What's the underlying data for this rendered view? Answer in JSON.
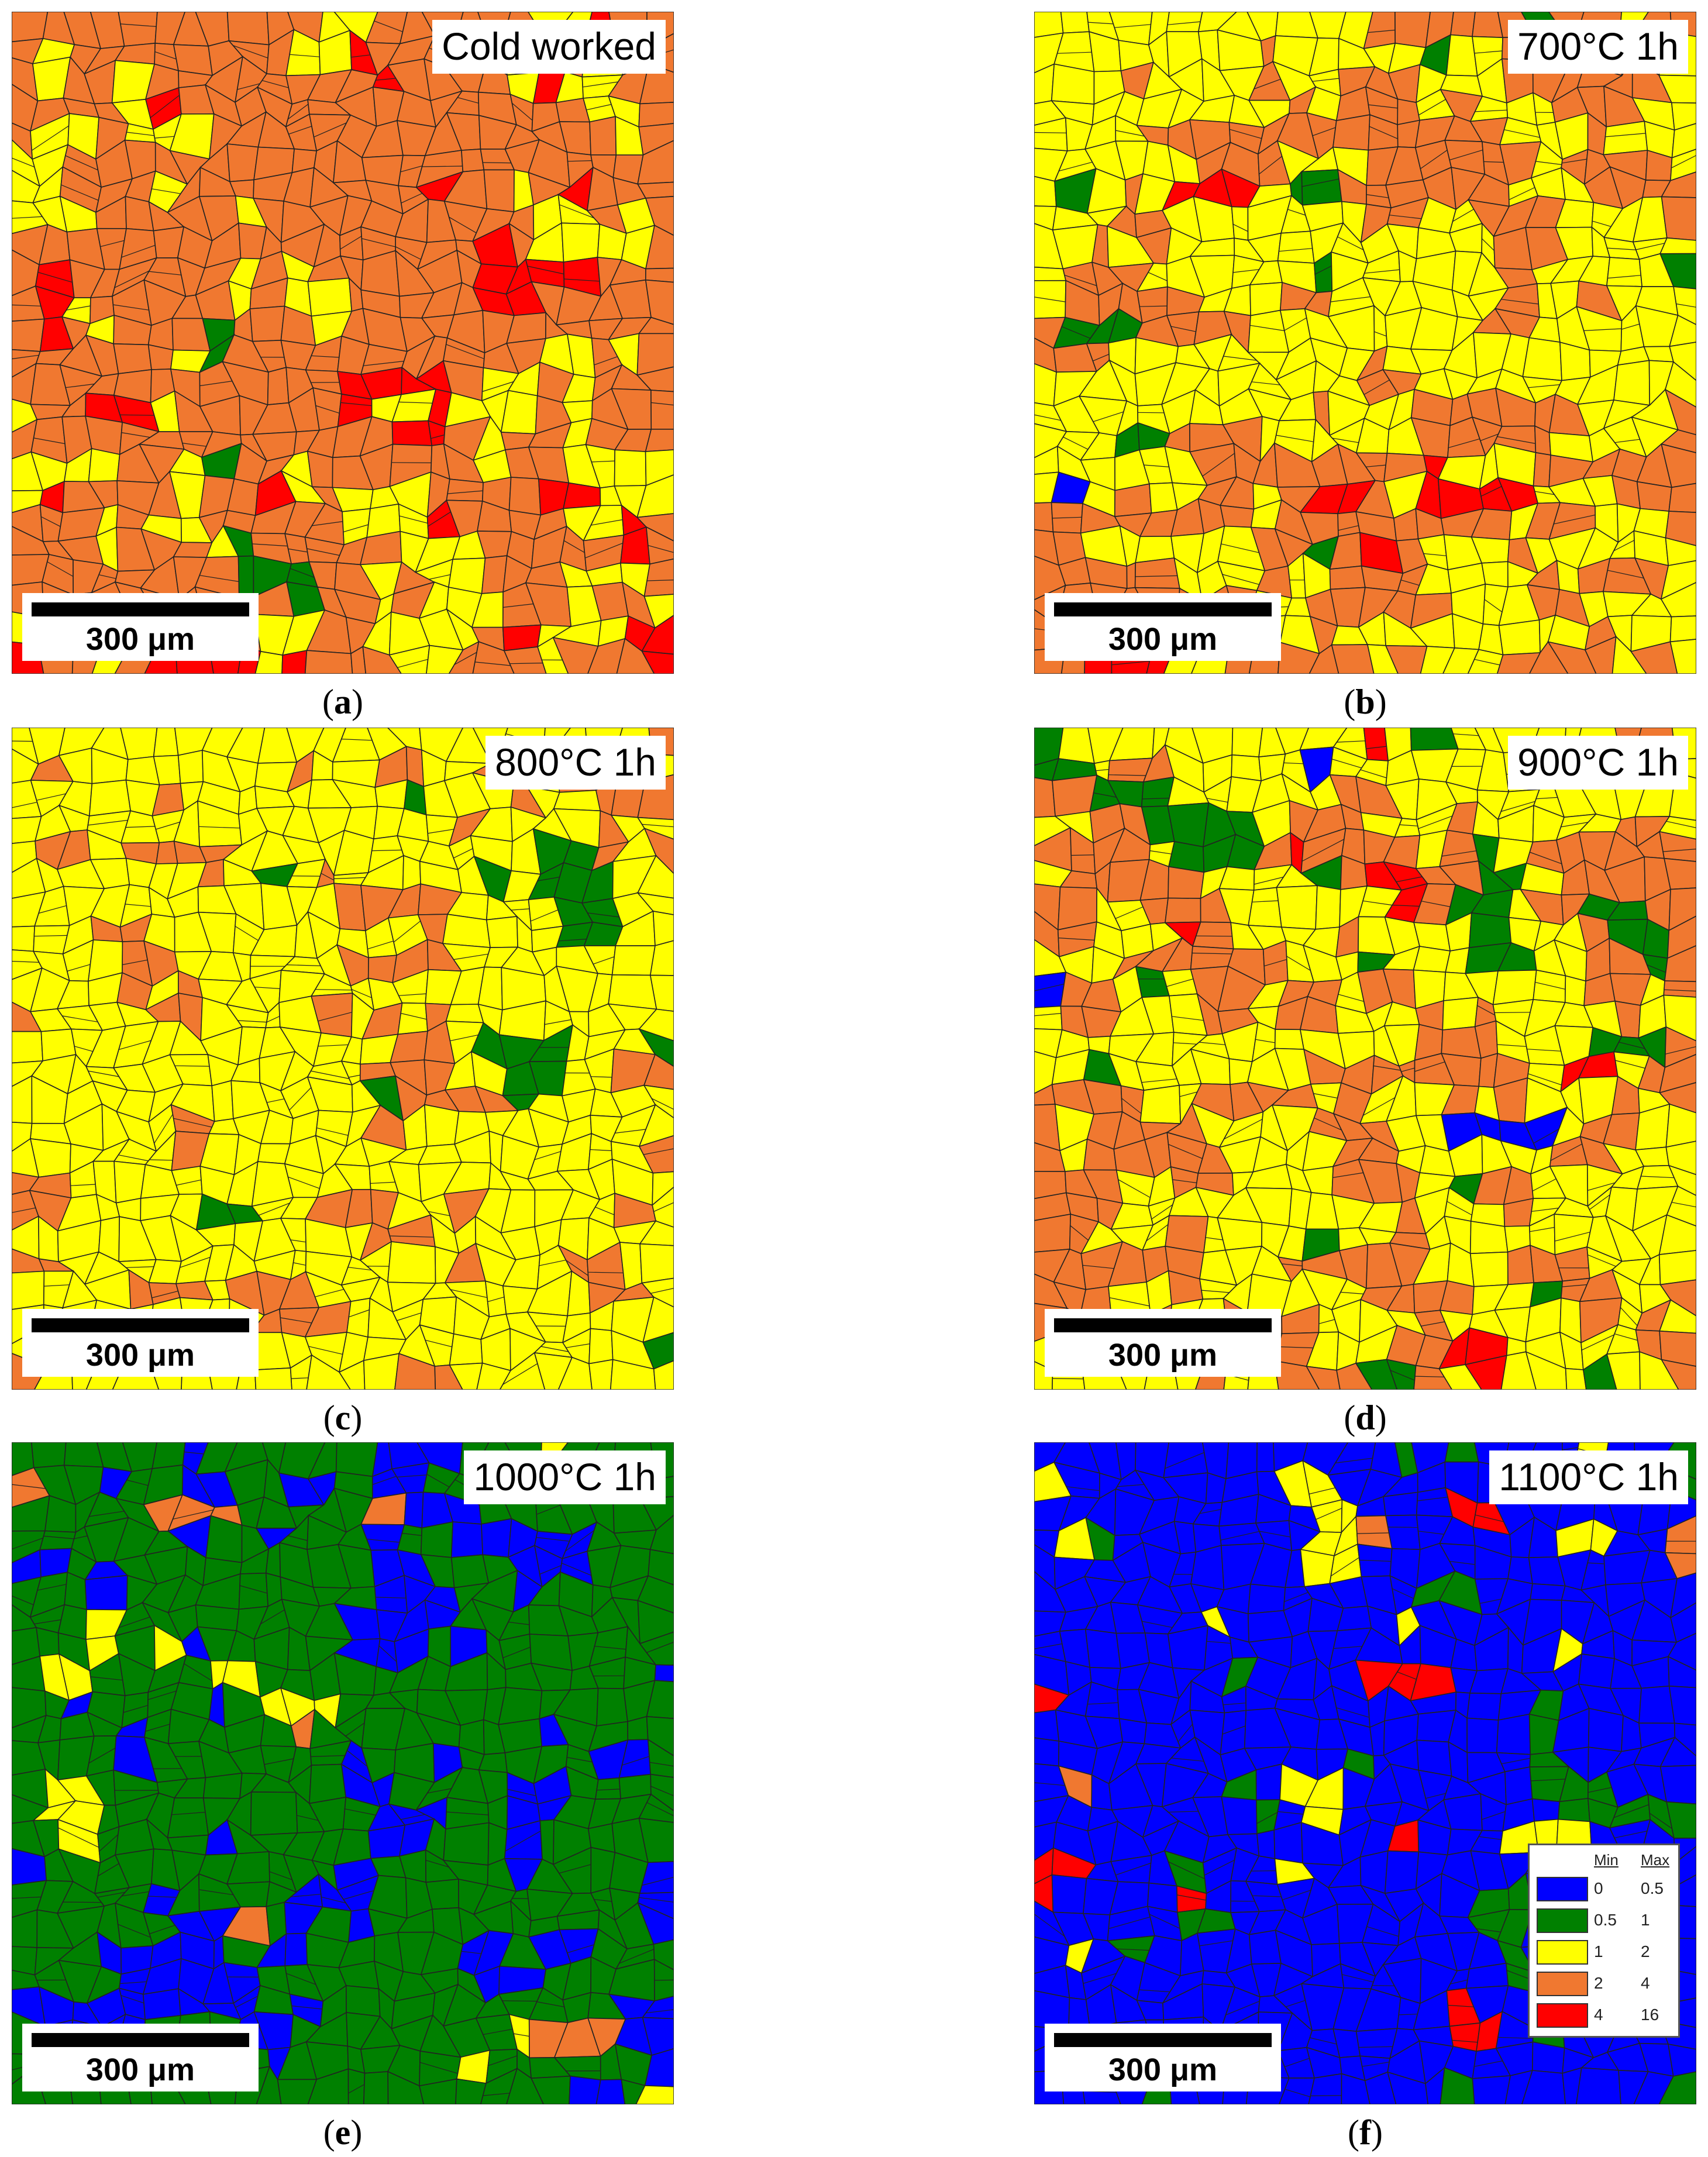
{
  "figure": {
    "scale_bar_label": "300 μm",
    "colors": {
      "blue": "#0000ff",
      "green": "#008000",
      "yellow": "#ffff00",
      "orange": "#f07830",
      "red": "#ff0000",
      "boundary": "#222222"
    },
    "panels": [
      {
        "id": "a",
        "label": "Cold worked",
        "caption_letter": "a",
        "dominant": "orange",
        "fractions": {
          "red": 0.08,
          "orange": 0.66,
          "yellow": 0.24,
          "green": 0.02,
          "blue": 0.0
        }
      },
      {
        "id": "b",
        "label": "700°C 1h",
        "caption_letter": "b",
        "dominant": "yellow",
        "fractions": {
          "red": 0.02,
          "orange": 0.28,
          "yellow": 0.62,
          "green": 0.07,
          "blue": 0.01
        }
      },
      {
        "id": "c",
        "label": "800°C 1h",
        "caption_letter": "c",
        "dominant": "yellow",
        "fractions": {
          "red": 0.0,
          "orange": 0.22,
          "yellow": 0.74,
          "green": 0.04,
          "blue": 0.0
        }
      },
      {
        "id": "d",
        "label": "900°C 1h",
        "caption_letter": "d",
        "dominant": "yellow",
        "fractions": {
          "red": 0.01,
          "orange": 0.3,
          "yellow": 0.6,
          "green": 0.08,
          "blue": 0.01
        }
      },
      {
        "id": "e",
        "label": "1000°C 1h",
        "caption_letter": "e",
        "dominant": "green",
        "fractions": {
          "red": 0.0,
          "orange": 0.02,
          "yellow": 0.03,
          "green": 0.7,
          "blue": 0.25
        }
      },
      {
        "id": "f",
        "label": "1100°C 1h",
        "caption_letter": "f",
        "dominant": "blue",
        "fractions": {
          "red": 0.03,
          "orange": 0.01,
          "yellow": 0.05,
          "green": 0.12,
          "blue": 0.79
        }
      }
    ],
    "legend": {
      "min_header": "Min",
      "max_header": "Max",
      "rows": [
        {
          "min": "0",
          "max": "0.5",
          "color": "#0000ff"
        },
        {
          "min": "0.5",
          "max": "1",
          "color": "#008000"
        },
        {
          "min": "1",
          "max": "2",
          "color": "#ffff00"
        },
        {
          "min": "2",
          "max": "4",
          "color": "#f07830"
        },
        {
          "min": "4",
          "max": "16",
          "color": "#ff0000"
        }
      ]
    }
  }
}
